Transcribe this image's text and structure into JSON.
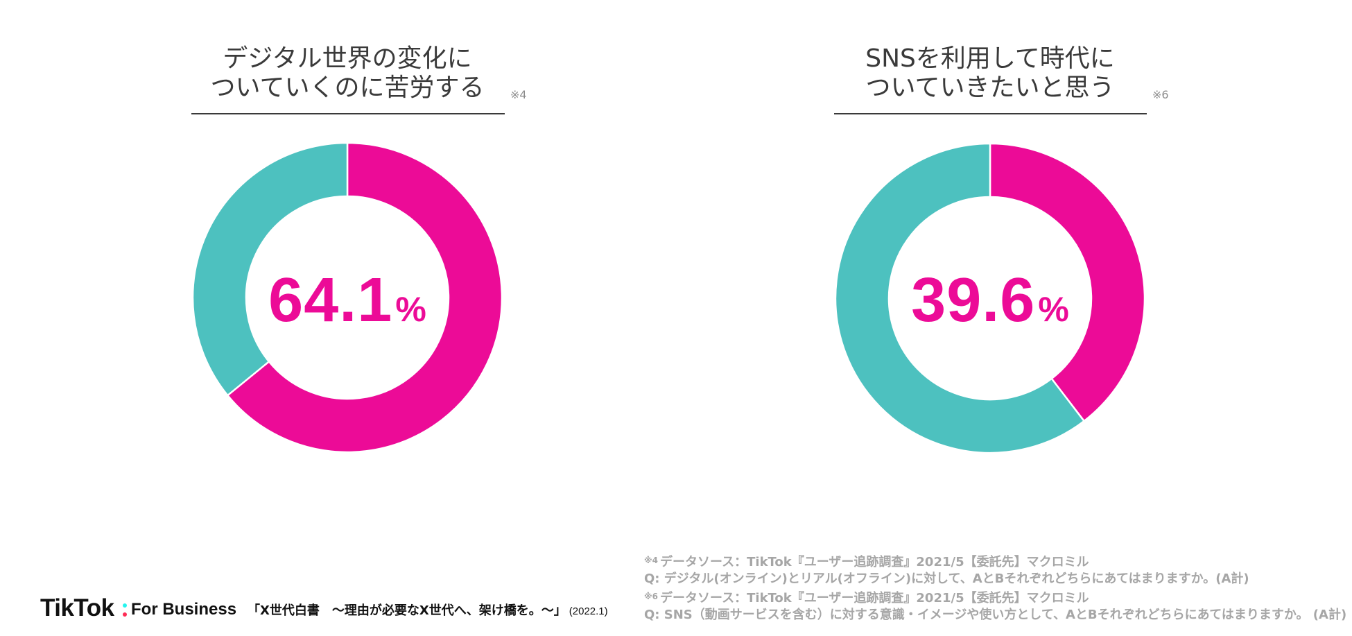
{
  "colors": {
    "magenta": "#EC0B97",
    "teal": "#4DC1BF",
    "title_text": "#3A3A3A",
    "note_text": "#A6A6A6"
  },
  "chart_data": [
    {
      "type": "pie",
      "donut": true,
      "title_lines": [
        "デジタル世界の変化に",
        "ついていくのに苦労する"
      ],
      "note_mark": "※4",
      "values": [
        64.1,
        35.9
      ],
      "colors": [
        "#EC0B97",
        "#4DC1BF"
      ],
      "center_value": "64.1",
      "center_unit": "%"
    },
    {
      "type": "pie",
      "donut": true,
      "title_lines": [
        "SNSを利用して時代に",
        "ついていきたいと思う"
      ],
      "note_mark": "※6",
      "values": [
        39.6,
        60.4
      ],
      "colors": [
        "#EC0B97",
        "#4DC1BF"
      ],
      "center_value": "39.6",
      "center_unit": "%"
    }
  ],
  "footer": {
    "brand": "TikTok",
    "brand_suffix": "For Business",
    "publication": "「X世代白書　〜理由が必要なX世代へ、架け橋を。〜」",
    "publication_date": "(2022.1)"
  },
  "footnotes": [
    {
      "mark": "※4",
      "source": "データソース：TikTok『ユーザー追跡調査』2021/5【委託先】マクロミル",
      "question": "Q: デジタル(オンライン)とリアル(オフライン)に対して、AとBそれぞれどちらにあてはまりますか。(A計)"
    },
    {
      "mark": "※6",
      "source": "データソース：TikTok『ユーザー追跡調査』2021/5【委託先】マクロミル",
      "question": "Q: SNS（動画サービスを含む）に対する意識・イメージや使い方として、AとBそれぞれどちらにあてはまりますか。 (A計)"
    }
  ]
}
